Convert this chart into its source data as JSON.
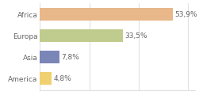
{
  "categories": [
    "Africa",
    "Europa",
    "Asia",
    "America"
  ],
  "values": [
    53.9,
    33.5,
    7.8,
    4.8
  ],
  "labels": [
    "53,9%",
    "33,5%",
    "7,8%",
    "4,8%"
  ],
  "bar_colors": [
    "#e8b78a",
    "#c0cc8e",
    "#7b86b8",
    "#f0d070"
  ],
  "background_color": "#ffffff",
  "xlim": [
    0,
    63
  ],
  "label_fontsize": 6.5,
  "category_fontsize": 6.5,
  "grid_color": "#e0e0e0",
  "text_color": "#666666"
}
